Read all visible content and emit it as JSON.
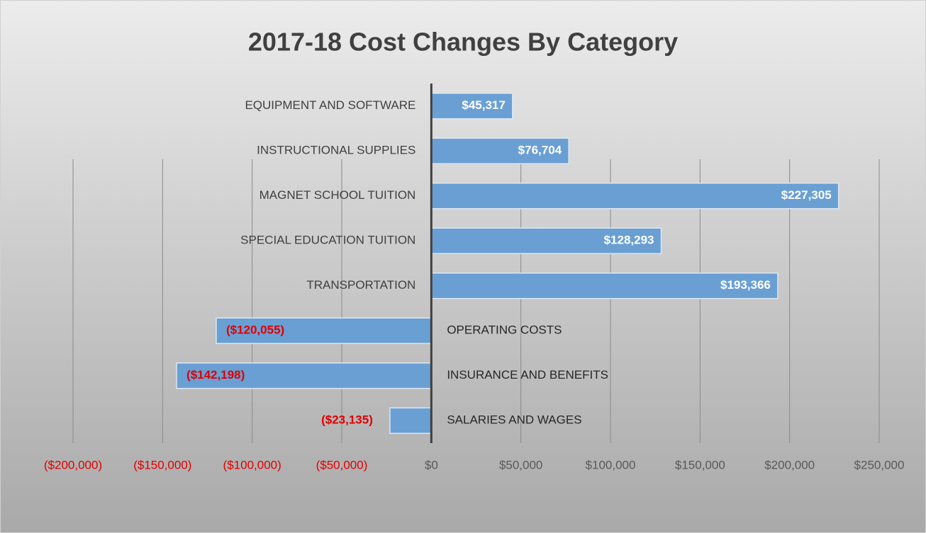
{
  "chart_data": {
    "type": "bar",
    "orientation": "horizontal",
    "title": "2017-18 Cost Changes By Category",
    "categories": [
      "EQUIPMENT AND SOFTWARE",
      "INSTRUCTIONAL SUPPLIES",
      "MAGNET SCHOOL TUITION",
      "SPECIAL EDUCATION TUITION",
      "TRANSPORTATION",
      "OPERATING COSTS",
      "INSURANCE AND BENEFITS",
      "SALARIES AND WAGES"
    ],
    "values": [
      45317,
      76704,
      227305,
      128293,
      193366,
      -120055,
      -142198,
      -23135
    ],
    "value_labels": [
      "$45,317",
      "$76,704",
      "$227,305",
      "$128,293",
      "$193,366",
      "($120,055)",
      "($142,198)",
      "($23,135)"
    ],
    "color": "#6a9fd3",
    "value_label_color": "#ffffff",
    "negative_color": "#e00000",
    "xlim": [
      -200000,
      250000
    ],
    "xticks": [
      {
        "value": -200000,
        "label": "($200,000)"
      },
      {
        "value": -150000,
        "label": "($150,000)"
      },
      {
        "value": -100000,
        "label": "($100,000)"
      },
      {
        "value": -50000,
        "label": "($50,000)"
      },
      {
        "value": 0,
        "label": "$0"
      },
      {
        "value": 50000,
        "label": "$50,000"
      },
      {
        "value": 100000,
        "label": "$100,000"
      },
      {
        "value": 150000,
        "label": "$150,000"
      },
      {
        "value": 200000,
        "label": "$200,000"
      },
      {
        "value": 250000,
        "label": "$250,000"
      }
    ],
    "grid": true
  }
}
